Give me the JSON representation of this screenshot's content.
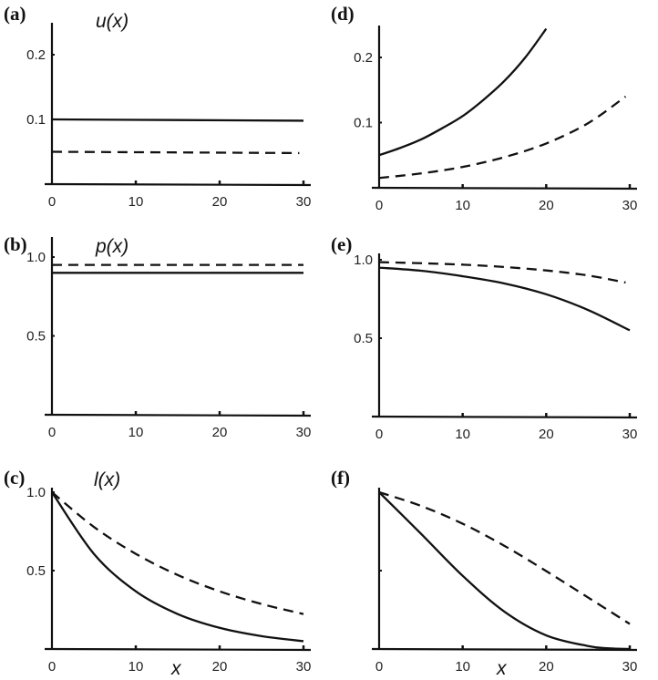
{
  "chart_data": [
    {
      "panel": "(a)",
      "type": "line",
      "curve_label": "u(x)",
      "xlabel": "",
      "xlim": [
        0,
        30
      ],
      "ylim": [
        0,
        0.25
      ],
      "xticks": [
        "0",
        "10",
        "20",
        "30"
      ],
      "yticks": [
        {
          "v": 0.1,
          "t": "0.1"
        },
        {
          "v": 0.2,
          "t": "0.2"
        }
      ],
      "series": [
        {
          "style": "solid",
          "x": [
            0,
            30
          ],
          "y": [
            0.1,
            0.098
          ]
        },
        {
          "style": "dashed",
          "x": [
            0,
            29.5
          ],
          "y": [
            0.05,
            0.048
          ]
        }
      ]
    },
    {
      "panel": "(b)",
      "type": "line",
      "curve_label": "p(x)",
      "xlabel": "",
      "xlim": [
        0,
        30
      ],
      "ylim": [
        0,
        1.1
      ],
      "xticks": [
        "0",
        "10",
        "20",
        "30"
      ],
      "yticks": [
        {
          "v": 0.5,
          "t": "0.5"
        },
        {
          "v": 1.0,
          "t": "1.0"
        }
      ],
      "series": [
        {
          "style": "solid",
          "x": [
            0,
            30
          ],
          "y": [
            0.9,
            0.9
          ]
        },
        {
          "style": "dashed",
          "x": [
            0,
            30
          ],
          "y": [
            0.95,
            0.95
          ]
        }
      ]
    },
    {
      "panel": "(c)",
      "type": "line",
      "curve_label": "l(x)",
      "xlabel": "x",
      "xlim": [
        0,
        30
      ],
      "ylim": [
        0,
        1.05
      ],
      "xticks": [
        "0",
        "10",
        "20",
        "30"
      ],
      "yticks": [
        {
          "v": 0.5,
          "t": "0.5"
        },
        {
          "v": 1.0,
          "t": "1.0"
        }
      ],
      "series": [
        {
          "style": "solid",
          "x": [
            0,
            5,
            10,
            15,
            20,
            25,
            30
          ],
          "y": [
            1,
            0.607,
            0.368,
            0.223,
            0.135,
            0.082,
            0.05
          ]
        },
        {
          "style": "dashed",
          "x": [
            0,
            5,
            10,
            15,
            20,
            25,
            30
          ],
          "y": [
            1,
            0.779,
            0.607,
            0.472,
            0.368,
            0.287,
            0.223
          ]
        }
      ]
    },
    {
      "panel": "(d)",
      "type": "line",
      "curve_label": "",
      "xlabel": "",
      "xlim": [
        0,
        30
      ],
      "ylim": [
        0,
        0.25
      ],
      "xticks": [
        "0",
        "10",
        "20",
        "30"
      ],
      "yticks": [
        {
          "v": 0.1,
          "t": "0.1"
        },
        {
          "v": 0.2,
          "t": "0.2"
        }
      ],
      "series": [
        {
          "style": "solid",
          "x": [
            0,
            2.5,
            5,
            7.5,
            10,
            12.5,
            15,
            17.5,
            20
          ],
          "y": [
            0.05,
            0.061,
            0.074,
            0.091,
            0.11,
            0.135,
            0.164,
            0.2,
            0.244
          ]
        },
        {
          "style": "dashed",
          "x": [
            0,
            5,
            10,
            15,
            20,
            25,
            29.5
          ],
          "y": [
            0.015,
            0.022,
            0.032,
            0.047,
            0.068,
            0.099,
            0.14
          ]
        }
      ]
    },
    {
      "panel": "(e)",
      "type": "line",
      "curve_label": "",
      "xlabel": "",
      "xlim": [
        0,
        30
      ],
      "ylim": [
        0,
        1.1
      ],
      "xticks": [
        "0",
        "10",
        "20",
        "30"
      ],
      "yticks": [
        {
          "v": 0.5,
          "t": "0.5"
        },
        {
          "v": 1.0,
          "t": "1.0"
        }
      ],
      "series": [
        {
          "style": "solid",
          "x": [
            0,
            5,
            10,
            15,
            20,
            25,
            30
          ],
          "y": [
            0.95,
            0.93,
            0.895,
            0.849,
            0.78,
            0.68,
            0.55
          ]
        },
        {
          "style": "dashed",
          "x": [
            0,
            5,
            10,
            15,
            20,
            25,
            29.5
          ],
          "y": [
            0.985,
            0.978,
            0.969,
            0.954,
            0.932,
            0.9,
            0.855
          ]
        }
      ]
    },
    {
      "panel": "(f)",
      "type": "line",
      "curve_label": "",
      "xlabel": "x",
      "xlim": [
        0,
        30
      ],
      "ylim": [
        0,
        1.05
      ],
      "xticks": [
        "0",
        "10",
        "20",
        "30"
      ],
      "yticks": [
        {
          "v": 0.5,
          "t": ""
        }
      ],
      "series": [
        {
          "style": "solid",
          "x": [
            0,
            5,
            10,
            15,
            20,
            25,
            27.5,
            30
          ],
          "y": [
            1,
            0.736,
            0.467,
            0.238,
            0.087,
            0.019,
            0.004,
            0.0
          ]
        },
        {
          "style": "dashed",
          "x": [
            0,
            5,
            10,
            15,
            20,
            25,
            30
          ],
          "y": [
            1,
            0.913,
            0.799,
            0.658,
            0.497,
            0.329,
            0.16
          ]
        }
      ]
    }
  ],
  "colors": {
    "line": "#111111",
    "axis": "#111111"
  }
}
